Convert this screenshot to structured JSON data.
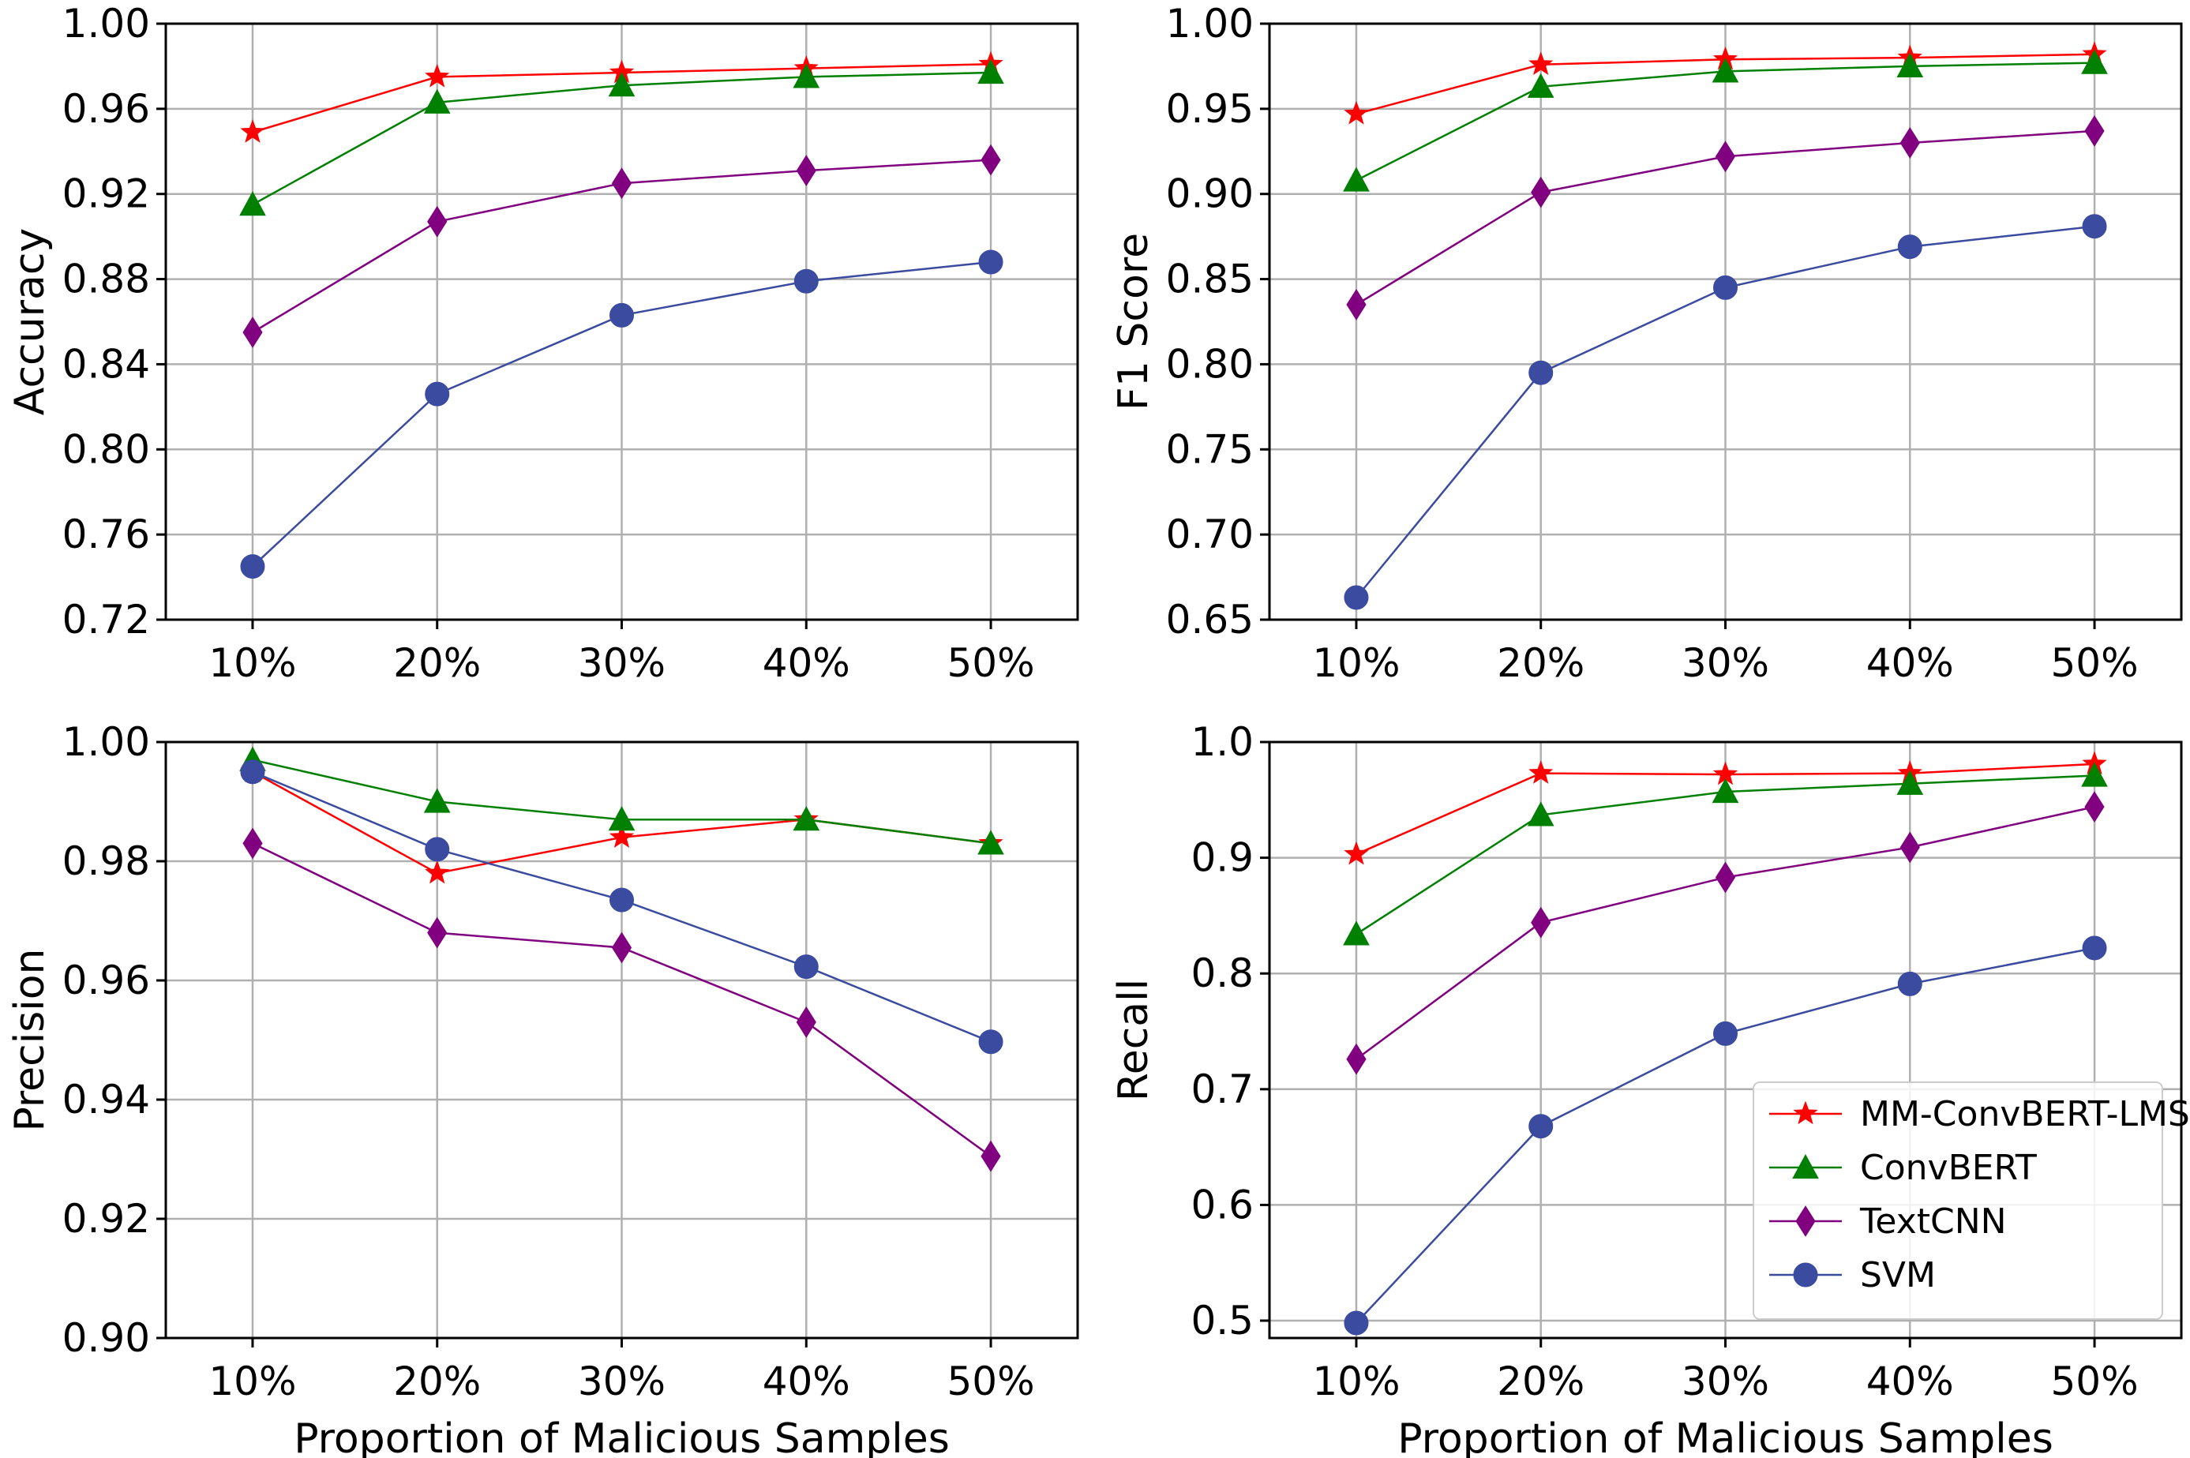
{
  "chart_data": [
    {
      "type": "line",
      "xlabel": "",
      "ylabel": "Accuracy",
      "categories": [
        "10%",
        "20%",
        "30%",
        "40%",
        "50%"
      ],
      "ylim": [
        0.72,
        1.0
      ],
      "yticks": [
        0.72,
        0.76,
        0.8,
        0.84,
        0.88,
        0.92,
        0.96,
        1.0
      ],
      "ytick_labels": [
        "0.72",
        "0.76",
        "0.80",
        "0.84",
        "0.88",
        "0.92",
        "0.96",
        "1.00"
      ],
      "grid": true,
      "series": [
        {
          "name": "MM-ConvBERT-LMS",
          "values": [
            0.949,
            0.975,
            0.977,
            0.979,
            0.981
          ]
        },
        {
          "name": "ConvBERT",
          "values": [
            0.915,
            0.963,
            0.971,
            0.975,
            0.977
          ]
        },
        {
          "name": "TextCNN",
          "values": [
            0.855,
            0.907,
            0.925,
            0.931,
            0.936
          ]
        },
        {
          "name": "SVM",
          "values": [
            0.745,
            0.826,
            0.863,
            0.879,
            0.888
          ]
        }
      ]
    },
    {
      "type": "line",
      "xlabel": "",
      "ylabel": "F1 Score",
      "categories": [
        "10%",
        "20%",
        "30%",
        "40%",
        "50%"
      ],
      "ylim": [
        0.65,
        1.0
      ],
      "yticks": [
        0.65,
        0.7,
        0.75,
        0.8,
        0.85,
        0.9,
        0.95,
        1.0
      ],
      "ytick_labels": [
        "0.65",
        "0.70",
        "0.75",
        "0.80",
        "0.85",
        "0.90",
        "0.95",
        "1.00"
      ],
      "grid": true,
      "series": [
        {
          "name": "MM-ConvBERT-LMS",
          "values": [
            0.947,
            0.976,
            0.979,
            0.98,
            0.982
          ]
        },
        {
          "name": "ConvBERT",
          "values": [
            0.908,
            0.963,
            0.972,
            0.975,
            0.977
          ]
        },
        {
          "name": "TextCNN",
          "values": [
            0.835,
            0.901,
            0.922,
            0.93,
            0.937
          ]
        },
        {
          "name": "SVM",
          "values": [
            0.663,
            0.795,
            0.845,
            0.869,
            0.881
          ]
        }
      ]
    },
    {
      "type": "line",
      "xlabel": "Proportion of Malicious Samples",
      "ylabel": "Precision",
      "categories": [
        "10%",
        "20%",
        "30%",
        "40%",
        "50%"
      ],
      "ylim": [
        0.9,
        1.0
      ],
      "yticks": [
        0.9,
        0.92,
        0.94,
        0.96,
        0.98,
        1.0
      ],
      "ytick_labels": [
        "0.90",
        "0.92",
        "0.94",
        "0.96",
        "0.98",
        "1.00"
      ],
      "grid": true,
      "series": [
        {
          "name": "MM-ConvBERT-LMS",
          "values": [
            0.995,
            0.978,
            0.984,
            0.987,
            0.983
          ]
        },
        {
          "name": "ConvBERT",
          "values": [
            0.997,
            0.99,
            0.987,
            0.987,
            0.983
          ]
        },
        {
          "name": "TextCNN",
          "values": [
            0.983,
            0.968,
            0.9655,
            0.953,
            0.9305
          ]
        },
        {
          "name": "SVM",
          "values": [
            0.995,
            0.982,
            0.9735,
            0.9623,
            0.9497
          ]
        }
      ]
    },
    {
      "type": "line",
      "xlabel": "Proportion of Malicious Samples",
      "ylabel": "Recall",
      "categories": [
        "10%",
        "20%",
        "30%",
        "40%",
        "50%"
      ],
      "ylim": [
        0.485,
        1.0
      ],
      "yticks": [
        0.5,
        0.6,
        0.7,
        0.8,
        0.9,
        1.0
      ],
      "ytick_labels": [
        "0.5",
        "0.6",
        "0.7",
        "0.8",
        "0.9",
        "1.0"
      ],
      "grid": true,
      "legend": "lower-right",
      "series": [
        {
          "name": "MM-ConvBERT-LMS",
          "values": [
            0.903,
            0.973,
            0.972,
            0.973,
            0.981
          ]
        },
        {
          "name": "ConvBERT",
          "values": [
            0.834,
            0.937,
            0.957,
            0.964,
            0.971
          ]
        },
        {
          "name": "TextCNN",
          "values": [
            0.726,
            0.844,
            0.883,
            0.909,
            0.944
          ]
        },
        {
          "name": "SVM",
          "values": [
            0.498,
            0.668,
            0.748,
            0.791,
            0.822
          ]
        }
      ]
    }
  ],
  "style": {
    "series_colors": [
      "#ff0000",
      "#008000",
      "#800080",
      "#3a4ba0"
    ],
    "series_markers": [
      "star",
      "triangle",
      "diamond",
      "circle"
    ],
    "grid_color": "#b0b0b0",
    "axis_color": "#000000"
  },
  "legend": {
    "entries": [
      "MM-ConvBERT-LMS",
      "ConvBERT",
      "TextCNN",
      "SVM"
    ]
  }
}
